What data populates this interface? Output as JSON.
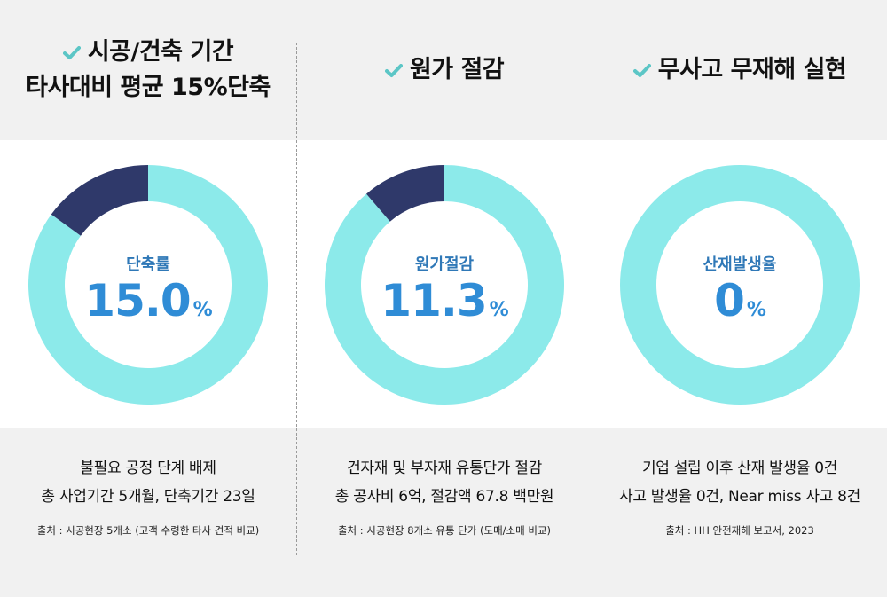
{
  "colors": {
    "ring": "#8ceaea",
    "slice": "#2f396a",
    "check": "#5cc6c6",
    "value": "#2f8cd6",
    "label": "#2f78b7"
  },
  "panels": [
    {
      "title_lines": [
        "시공/건축 기간",
        "타사대비 평균 15%단축"
      ],
      "label": "단축률",
      "value": "15.0",
      "unit": "%",
      "desc_lines": [
        "불필요 공정 단계 배제",
        "총 사업기간 5개월, 단축기간 23일"
      ],
      "source": "출처 : 시공현장 5개소 (고객 수령한 타사 견적 비교)"
    },
    {
      "title_lines": [
        "원가 절감"
      ],
      "label": "원가절감",
      "value": "11.3",
      "unit": "%",
      "desc_lines": [
        "건자재 및 부자재 유통단가 절감",
        "총 공사비 6억, 절감액 67.8 백만원"
      ],
      "source": "출처 : 시공현장 8개소 유통 단가  (도매/소매 비교)"
    },
    {
      "title_lines": [
        "무사고 무재해 실현"
      ],
      "label": "산재발생율",
      "value": "0",
      "unit": "%",
      "desc_lines": [
        "기업 설립 이후 산재 발생율 0건",
        "사고 발생율 0건, Near miss 사고 8건"
      ],
      "source": "출처 : HH 안전재해 보고서, 2023"
    }
  ],
  "chart_data": [
    {
      "type": "pie",
      "categories": [
        "단축률",
        ""
      ],
      "values": [
        15.0,
        85.0
      ]
    },
    {
      "type": "pie",
      "categories": [
        "원가절감",
        ""
      ],
      "values": [
        11.3,
        88.7
      ]
    },
    {
      "type": "pie",
      "categories": [
        "산재발생율",
        ""
      ],
      "values": [
        0,
        100
      ]
    }
  ]
}
